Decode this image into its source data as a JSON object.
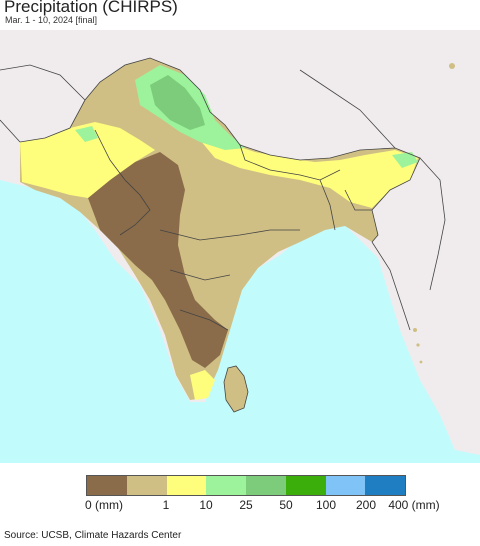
{
  "header": {
    "title": "Precipitation (CHIRPS)",
    "subtitle": "Mar. 1 - 10, 2024 [final]"
  },
  "map": {
    "region": "South Asia",
    "colors": {
      "ocean": "#c2fbfc",
      "outside_land": "#f0ecee",
      "border_line": "#444444"
    }
  },
  "legend": {
    "bins": [
      {
        "color": "#8a6c4a"
      },
      {
        "color": "#cfbf84"
      },
      {
        "color": "#fefe7c"
      },
      {
        "color": "#9cf39b"
      },
      {
        "color": "#7ccc7b"
      },
      {
        "color": "#3bae0b"
      },
      {
        "color": "#7fc3f7"
      },
      {
        "color": "#1f7ec1"
      }
    ],
    "labels": [
      "0 (mm)",
      "1",
      "10",
      "25",
      "50",
      "100",
      "200",
      "400 (mm)"
    ]
  },
  "footer": {
    "source": "Source: UCSB, Climate Hazards Center"
  }
}
